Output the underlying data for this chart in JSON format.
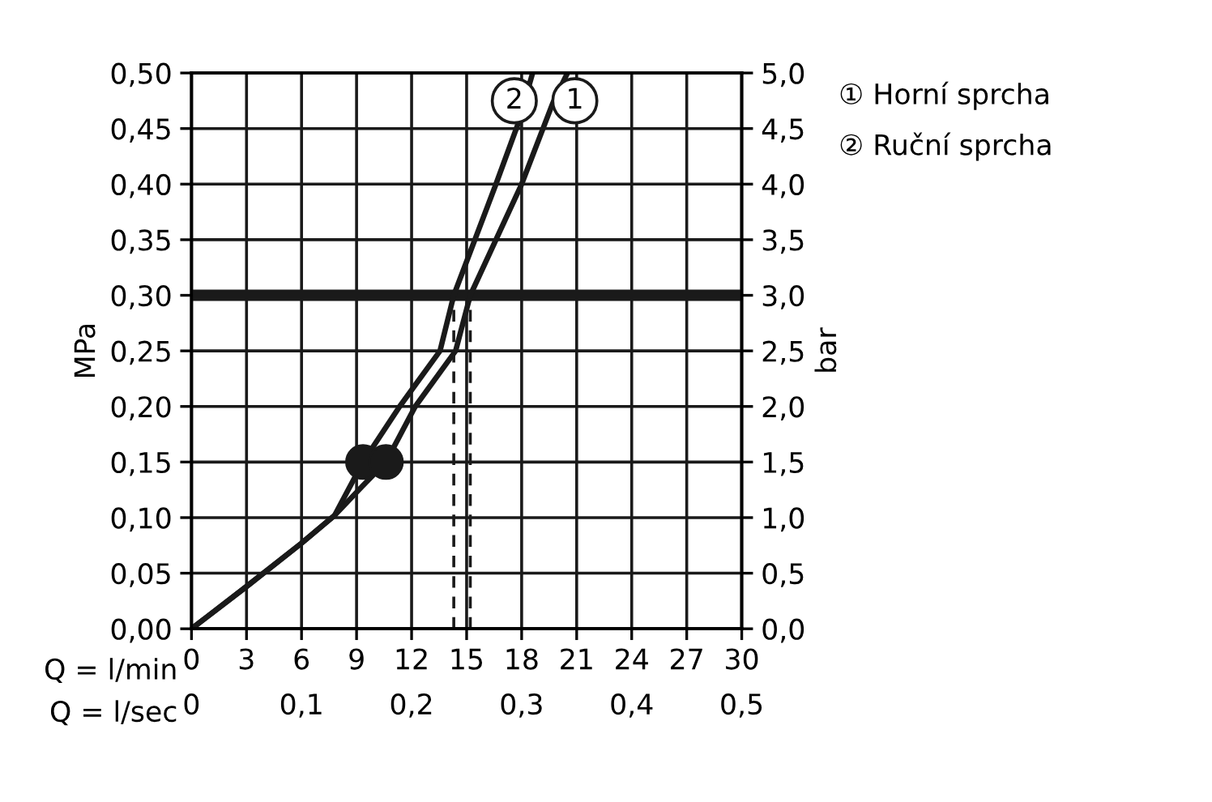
{
  "chart_data": {
    "type": "line",
    "xlabel": "Q = l/min",
    "x2label": "Q = l/sec",
    "ylabel": "MPa",
    "y2label": "bar",
    "xlim": [
      0,
      30
    ],
    "xticks": [
      0,
      3,
      6,
      9,
      12,
      15,
      18,
      21,
      24,
      27,
      30
    ],
    "x2lim": [
      0,
      0.5
    ],
    "x2ticks": [
      0,
      {
        "value": 0.1,
        "label": "0,1"
      },
      {
        "value": 0.2,
        "label": "0,2"
      },
      {
        "value": 0.3,
        "label": "0,3"
      },
      {
        "value": 0.4,
        "label": "0,4"
      },
      {
        "value": 0.5,
        "label": "0,5"
      }
    ],
    "ylim": [
      0,
      0.5
    ],
    "yticks": [
      {
        "value": 0,
        "label": "0,00"
      },
      {
        "value": 0.05,
        "label": "0,05"
      },
      {
        "value": 0.1,
        "label": "0,10"
      },
      {
        "value": 0.15,
        "label": "0,15"
      },
      {
        "value": 0.2,
        "label": "0,20"
      },
      {
        "value": 0.25,
        "label": "0,25"
      },
      {
        "value": 0.3,
        "label": "0,30"
      },
      {
        "value": 0.35,
        "label": "0,35"
      },
      {
        "value": 0.4,
        "label": "0,40"
      },
      {
        "value": 0.45,
        "label": "0,45"
      },
      {
        "value": 0.5,
        "label": "0,50"
      }
    ],
    "y2lim": [
      0,
      5
    ],
    "y2ticks": [
      {
        "value": 0,
        "label": "0,0"
      },
      {
        "value": 0.5,
        "label": "0,5"
      },
      {
        "value": 1,
        "label": "1,0"
      },
      {
        "value": 1.5,
        "label": "1,5"
      },
      {
        "value": 2,
        "label": "2,0"
      },
      {
        "value": 2.5,
        "label": "2,5"
      },
      {
        "value": 3,
        "label": "3,0"
      },
      {
        "value": 3.5,
        "label": "3,5"
      },
      {
        "value": 4,
        "label": "4,0"
      },
      {
        "value": 4.5,
        "label": "4,5"
      },
      {
        "value": 5,
        "label": "5,0"
      }
    ],
    "grid": true,
    "legend": "right",
    "line_style": "solid",
    "series": [
      {
        "name": "① Horní sprcha",
        "color": "#1a1a1a",
        "x": [
          0,
          3,
          6,
          7.8,
          9.3,
          10.6,
          12.2,
          14.4,
          15.2,
          18.0,
          19.7,
          20.5
        ],
        "values": [
          0,
          0.038,
          0.077,
          0.102,
          0.128,
          0.15,
          0.2,
          0.25,
          0.3,
          0.4,
          0.473,
          0.5
        ]
      },
      {
        "name": "② Ruční sprcha",
        "color": "#1a1a1a",
        "x": [
          0,
          3,
          6,
          7.8,
          9.35,
          11.35,
          13.55,
          14.3,
          16.6,
          17.8,
          18.6
        ],
        "values": [
          0,
          0.038,
          0.077,
          0.102,
          0.15,
          0.2,
          0.25,
          0.3,
          0.4,
          0.454,
          0.5
        ]
      },
      {
        "type": "scatter",
        "marker": "circle",
        "color": "#1a1a1a",
        "x": [
          9.35,
          10.6
        ],
        "values": [
          0.15,
          0.15
        ]
      }
    ],
    "ref_lines": [
      {
        "axis": "y",
        "value": 0.3,
        "color": "#1a1a1a",
        "line_style": "solid"
      },
      {
        "axis": "x",
        "value": 14.3,
        "color": "#1a1a1a",
        "line_style": "dashed"
      },
      {
        "axis": "x",
        "value": 15.2,
        "color": "#1a1a1a",
        "line_style": "dashed"
      }
    ],
    "annotations": [
      {
        "text": "1",
        "x": 20.9,
        "y": 0.475
      },
      {
        "text": "2",
        "x": 17.6,
        "y": 0.475
      }
    ]
  }
}
